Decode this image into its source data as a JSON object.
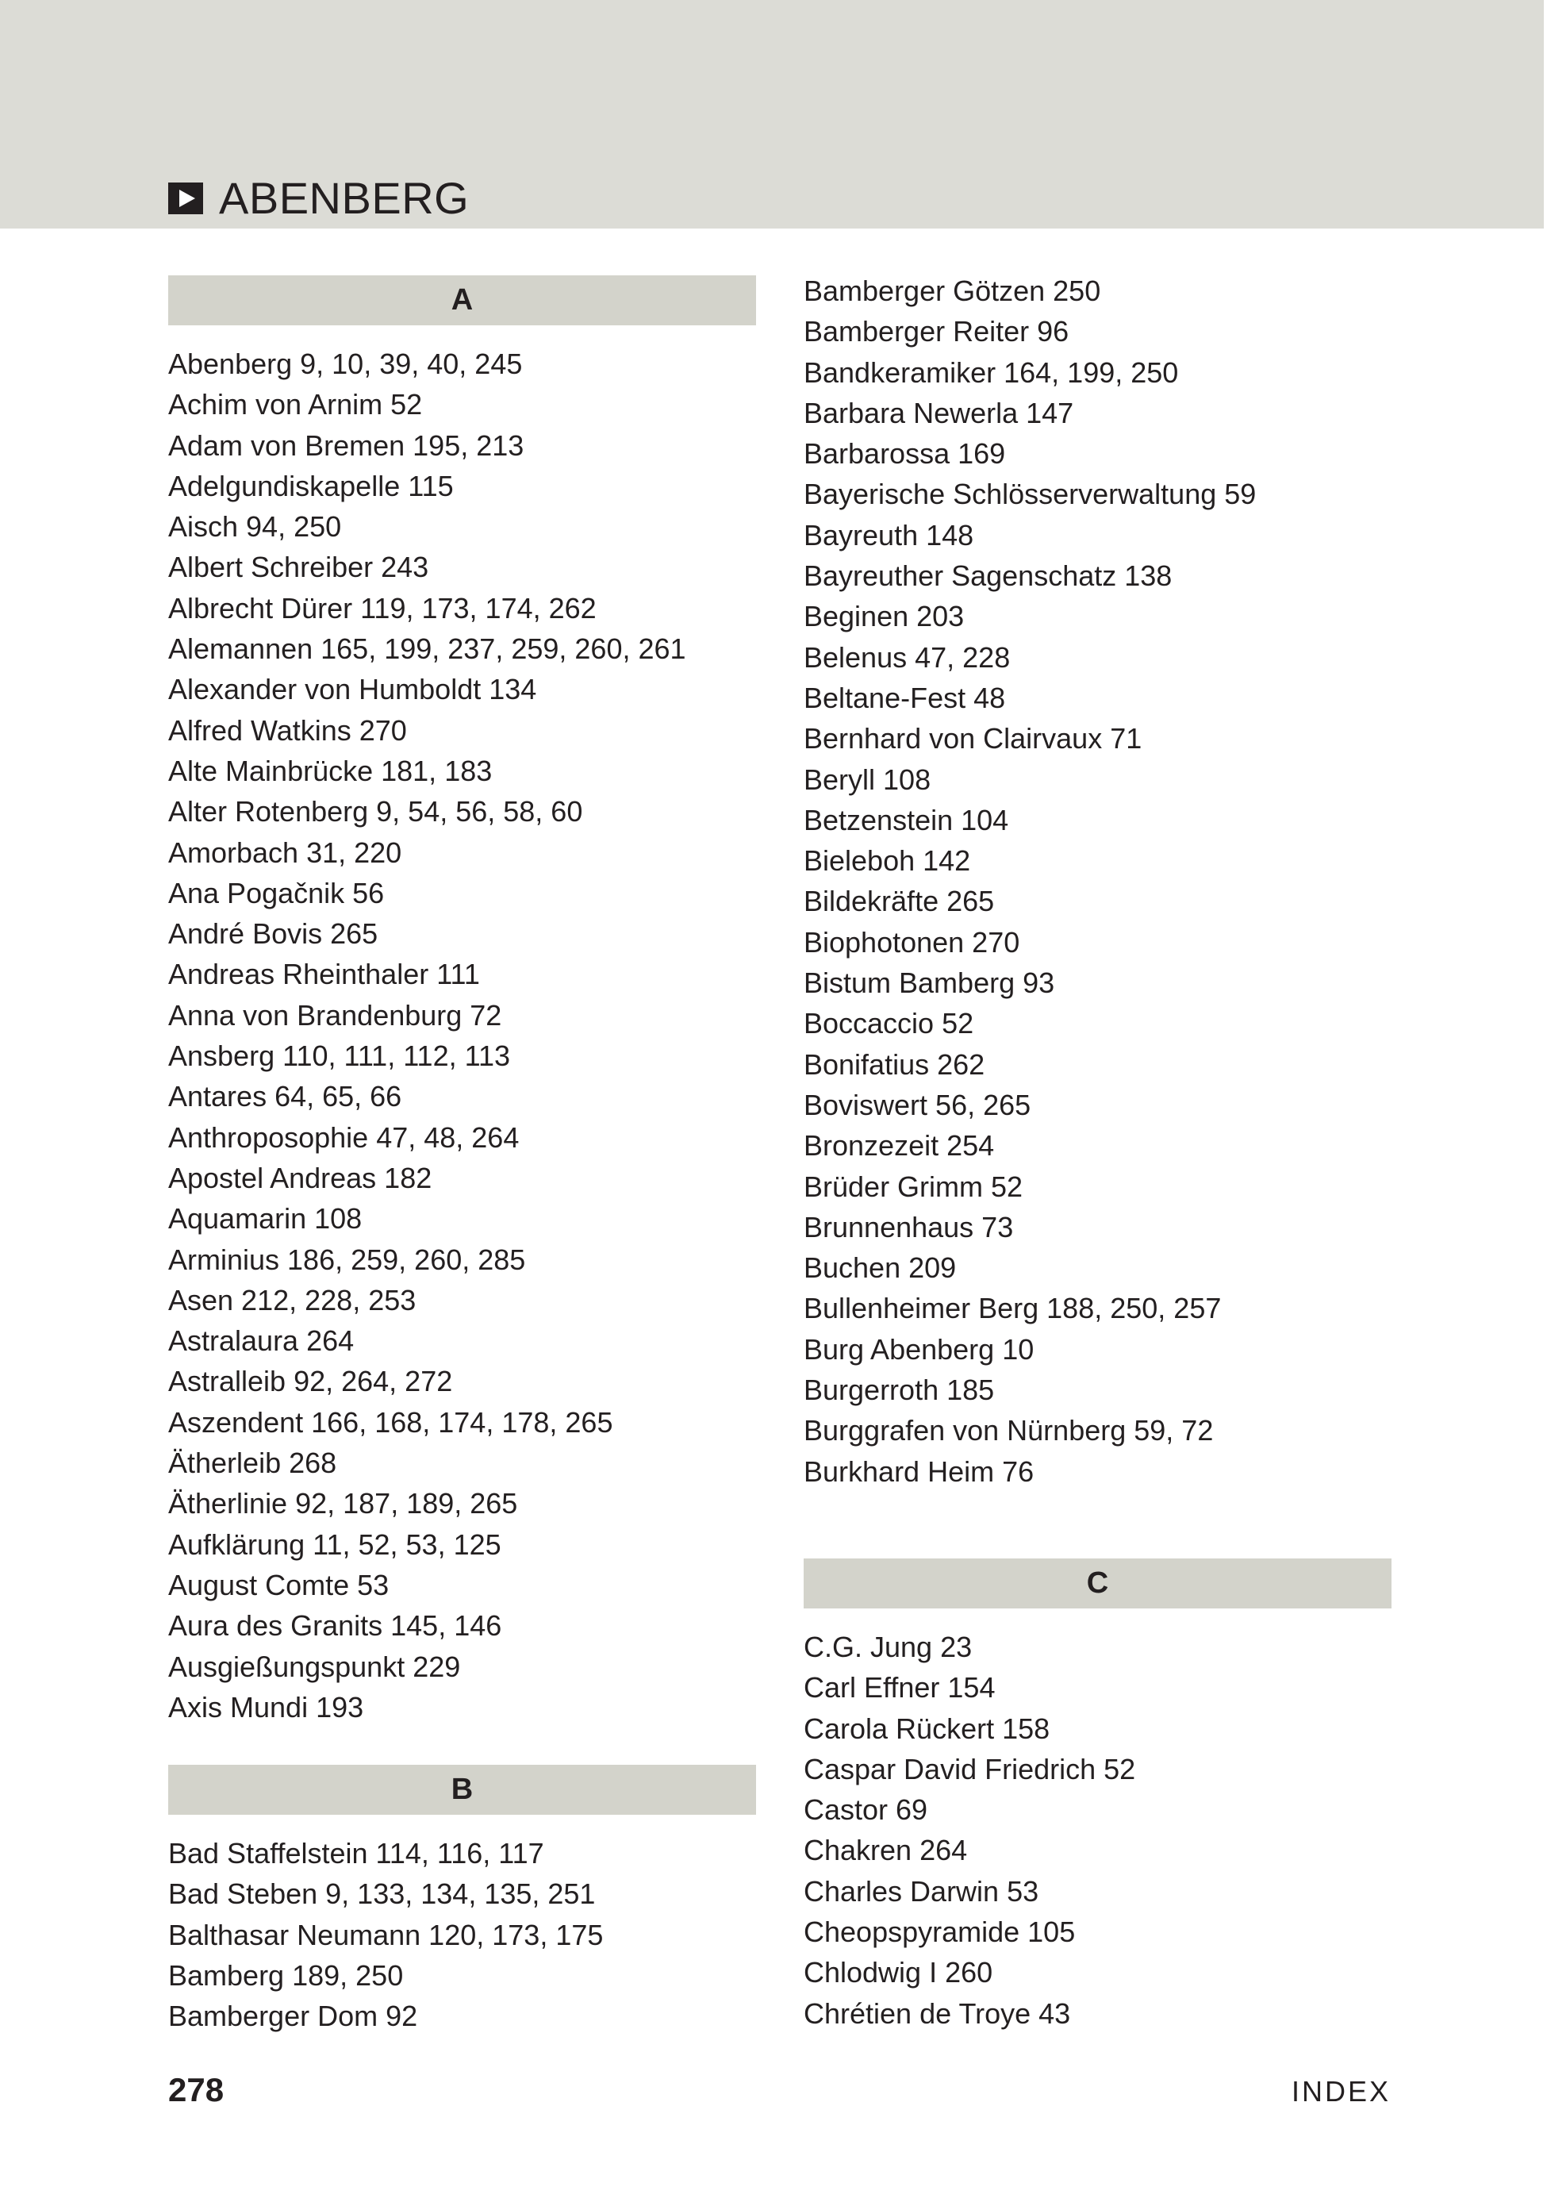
{
  "header": {
    "title": "ABENBERG",
    "icon": "play-square-icon"
  },
  "sections": {
    "A": {
      "letter": "A",
      "entries": [
        "Abenberg 9, 10, 39, 40, 245",
        "Achim von Arnim 52",
        "Adam von Bremen 195, 213",
        "Adelgundiskapelle 115",
        "Aisch 94, 250",
        "Albert Schreiber 243",
        "Albrecht Dürer 119, 173, 174, 262",
        "Alemannen 165, 199, 237, 259, 260, 261",
        "Alexander von Humboldt 134",
        "Alfred Watkins 270",
        "Alte Mainbrücke 181, 183",
        "Alter Rotenberg 9, 54, 56, 58, 60",
        "Amorbach 31, 220",
        "Ana Pogačnik 56",
        "André Bovis 265",
        "Andreas Rheinthaler 111",
        "Anna von Brandenburg 72",
        "Ansberg 110, 111, 112, 113",
        "Antares 64, 65, 66",
        "Anthroposophie 47, 48, 264",
        "Apostel Andreas 182",
        "Aquamarin 108",
        "Arminius 186, 259, 260, 285",
        "Asen 212, 228, 253",
        "Astralaura 264",
        "Astralleib 92, 264, 272",
        "Aszendent 166, 168, 174, 178, 265",
        "Ätherleib 268",
        "Ätherlinie 92, 187, 189, 265",
        "Aufklärung 11, 52, 53, 125",
        "August Comte 53",
        "Aura des Granits 145, 146",
        "Ausgießungspunkt 229",
        "Axis Mundi 193"
      ]
    },
    "B": {
      "letter": "B",
      "entries": [
        "Bad Staffelstein 114, 116, 117",
        "Bad Steben 9, 133, 134, 135, 251",
        "Balthasar Neumann 120, 173, 175",
        "Bamberg 189, 250",
        "Bamberger Dom 92",
        "Bamberger Götzen 250",
        "Bamberger Reiter 96",
        "Bandkeramiker 164, 199, 250",
        "Barbara Newerla 147",
        "Barbarossa 169",
        "Bayerische Schlösserverwaltung 59",
        "Bayreuth 148",
        "Bayreuther Sagenschatz 138",
        "Beginen 203",
        "Belenus 47, 228",
        "Beltane-Fest 48",
        "Bernhard von Clairvaux 71",
        "Beryll 108",
        "Betzenstein 104",
        "Bieleboh 142",
        "Bildekräfte 265",
        "Biophotonen 270",
        "Bistum Bamberg 93",
        "Boccaccio 52",
        "Bonifatius 262",
        "Boviswert 56, 265",
        "Bronzezeit 254",
        "Brüder Grimm 52",
        "Brunnenhaus 73",
        "Buchen 209",
        "Bullenheimer Berg 188, 250, 257",
        "Burg Abenberg 10",
        "Burgerroth 185",
        "Burggrafen von Nürnberg 59, 72",
        "Burkhard Heim 76"
      ]
    },
    "C": {
      "letter": "C",
      "entries": [
        "C.G. Jung 23",
        "Carl Effner 154",
        "Carola Rückert 158",
        "Caspar David Friedrich 52",
        "Castor 69",
        "Chakren 264",
        "Charles Darwin 53",
        "Cheopspyramide 105",
        "Chlodwig I 260",
        "Chrétien de Troye 43"
      ]
    }
  },
  "footer": {
    "page_number": "278",
    "section": "INDEX"
  },
  "colors": {
    "header_band": "#dcdcd6",
    "letter_bar": "#d3d3cb",
    "text": "#231f20"
  }
}
